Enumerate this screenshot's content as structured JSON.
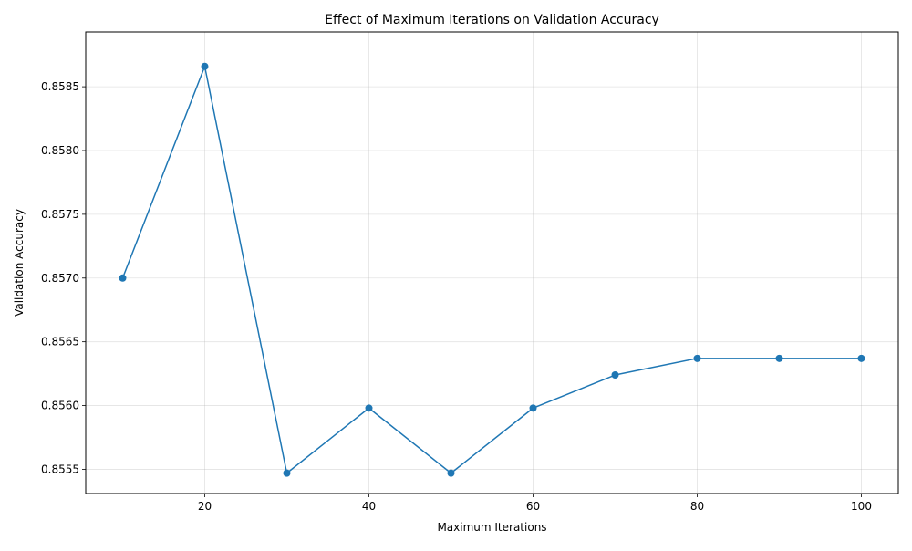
{
  "chart_data": {
    "type": "line",
    "title": "Effect of Maximum Iterations on Validation Accuracy",
    "xlabel": "Maximum Iterations",
    "ylabel": "Validation Accuracy",
    "xlim": [
      5.5,
      104.5
    ],
    "ylim": [
      0.85531,
      0.85893
    ],
    "x_ticks": [
      20,
      40,
      60,
      80,
      100
    ],
    "x_tick_labels": [
      "20",
      "40",
      "60",
      "80",
      "100"
    ],
    "y_ticks": [
      0.8555,
      0.856,
      0.8565,
      0.857,
      0.8575,
      0.858,
      0.8585
    ],
    "y_tick_labels": [
      "0.8555",
      "0.8560",
      "0.8565",
      "0.8570",
      "0.8575",
      "0.8580",
      "0.8585"
    ],
    "grid": true,
    "legend": false,
    "series": [
      {
        "color": "#1f77b4",
        "marker": "circle",
        "x": [
          10,
          20,
          30,
          40,
          50,
          60,
          70,
          80,
          90,
          100
        ],
        "y": [
          0.857,
          0.85866,
          0.85547,
          0.85598,
          0.85547,
          0.85598,
          0.85624,
          0.85637,
          0.85637,
          0.85637
        ]
      }
    ]
  }
}
